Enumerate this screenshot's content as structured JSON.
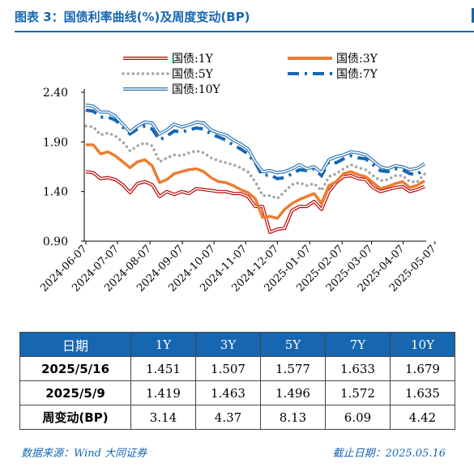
{
  "title": "图表 3：国债利率曲线(%)及周度变动(BP)",
  "chart_data": {
    "type": "line",
    "y_ticks": [
      "0.90",
      "1.40",
      "1.90",
      "2.40"
    ],
    "ylim": [
      0.9,
      2.4
    ],
    "x_ticks": [
      "2024-06-07",
      "2024-07-07",
      "2024-08-07",
      "2024-09-07",
      "2024-10-07",
      "2024-11-07",
      "2024-12-07",
      "2025-01-07",
      "2025-02-07",
      "2025-03-07",
      "2025-04-07",
      "2025-05-07"
    ],
    "x_tick_index": [
      0,
      4.3,
      8.7,
      13.1,
      17.4,
      21.7,
      26.0,
      30.4,
      34.8,
      38.8,
      43.1,
      47.4
    ],
    "legend": [
      "国债:1Y",
      "国债:3Y",
      "国债:5Y",
      "国债:7Y",
      "国债:10Y"
    ],
    "series": [
      {
        "name": "国债:1Y",
        "color": "#C00000",
        "style": "double",
        "values": [
          1.6,
          1.59,
          1.53,
          1.54,
          1.52,
          1.47,
          1.39,
          1.48,
          1.5,
          1.47,
          1.35,
          1.4,
          1.37,
          1.4,
          1.38,
          1.43,
          1.42,
          1.41,
          1.4,
          1.4,
          1.38,
          1.38,
          1.35,
          1.25,
          1.25,
          0.99,
          1.02,
          1.03,
          1.21,
          1.25,
          1.25,
          1.3,
          1.22,
          1.4,
          1.49,
          1.55,
          1.56,
          1.53,
          1.52,
          1.44,
          1.4,
          1.42,
          1.44,
          1.45,
          1.4,
          1.42,
          1.451
        ]
      },
      {
        "name": "国债:3Y",
        "color": "#ED7D31",
        "style": "solid",
        "values": [
          1.87,
          1.87,
          1.78,
          1.8,
          1.76,
          1.7,
          1.64,
          1.7,
          1.72,
          1.66,
          1.49,
          1.52,
          1.58,
          1.6,
          1.62,
          1.63,
          1.6,
          1.54,
          1.5,
          1.49,
          1.46,
          1.42,
          1.39,
          1.33,
          1.14,
          1.15,
          1.13,
          1.22,
          1.28,
          1.32,
          1.35,
          1.38,
          1.28,
          1.46,
          1.5,
          1.58,
          1.6,
          1.57,
          1.55,
          1.49,
          1.43,
          1.45,
          1.48,
          1.5,
          1.44,
          1.463,
          1.507
        ]
      },
      {
        "name": "国债:5Y",
        "color": "#A6A6A6",
        "style": "dotted",
        "values": [
          2.06,
          2.05,
          1.97,
          1.99,
          1.96,
          1.9,
          1.81,
          1.86,
          1.89,
          1.86,
          1.7,
          1.74,
          1.77,
          1.76,
          1.79,
          1.81,
          1.79,
          1.74,
          1.71,
          1.69,
          1.67,
          1.64,
          1.6,
          1.5,
          1.36,
          1.36,
          1.33,
          1.4,
          1.47,
          1.49,
          1.46,
          1.48,
          1.41,
          1.55,
          1.58,
          1.63,
          1.67,
          1.64,
          1.62,
          1.56,
          1.51,
          1.52,
          1.56,
          1.56,
          1.5,
          1.496,
          1.577
        ]
      },
      {
        "name": "国债:7Y",
        "color": "#1766B2",
        "style": "dashdot",
        "values": [
          2.22,
          2.21,
          2.15,
          2.15,
          2.12,
          2.05,
          1.98,
          2.03,
          2.06,
          2.03,
          1.92,
          1.96,
          2.01,
          2.0,
          2.02,
          2.04,
          2.03,
          1.98,
          1.95,
          1.92,
          1.87,
          1.83,
          1.78,
          1.69,
          1.56,
          1.57,
          1.53,
          1.54,
          1.58,
          1.62,
          1.61,
          1.63,
          1.56,
          1.7,
          1.69,
          1.73,
          1.76,
          1.74,
          1.73,
          1.67,
          1.61,
          1.6,
          1.63,
          1.62,
          1.58,
          1.572,
          1.633
        ]
      },
      {
        "name": "国债:10Y",
        "color": "#2E75B6",
        "style": "double",
        "values": [
          2.27,
          2.26,
          2.2,
          2.2,
          2.16,
          2.08,
          2.0,
          2.06,
          2.1,
          2.09,
          1.98,
          2.02,
          2.08,
          2.05,
          2.07,
          2.1,
          2.09,
          2.02,
          1.99,
          1.97,
          1.92,
          1.88,
          1.83,
          1.7,
          1.6,
          1.61,
          1.59,
          1.6,
          1.63,
          1.67,
          1.63,
          1.65,
          1.59,
          1.72,
          1.75,
          1.77,
          1.8,
          1.79,
          1.77,
          1.71,
          1.65,
          1.63,
          1.66,
          1.65,
          1.62,
          1.635,
          1.679
        ]
      }
    ]
  },
  "table": {
    "headers": [
      "日期",
      "1Y",
      "3Y",
      "5Y",
      "7Y",
      "10Y"
    ],
    "rows": [
      [
        "2025/5/16",
        "1.451",
        "1.507",
        "1.577",
        "1.633",
        "1.679"
      ],
      [
        "2025/5/9",
        "1.419",
        "1.463",
        "1.496",
        "1.572",
        "1.635"
      ],
      [
        "周变动(BP)",
        "3.14",
        "4.37",
        "8.13",
        "6.09",
        "4.42"
      ]
    ]
  },
  "footer": {
    "source": "数据来源：Wind 大同证券",
    "date": "截止日期：2025.05.16"
  }
}
